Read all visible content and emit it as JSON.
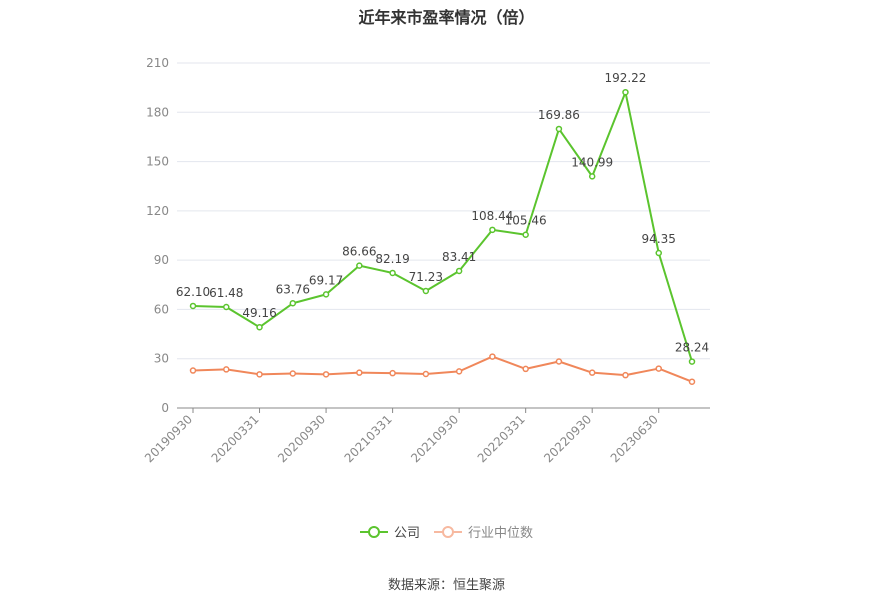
{
  "chart_data": {
    "type": "line",
    "title": "近年来市盈率情况（倍）",
    "y_ticks": [
      "0",
      "30",
      "60",
      "90",
      "120",
      "150",
      "180",
      "210"
    ],
    "ylim": [
      0,
      210
    ],
    "x_tick_labels": [
      "20190930",
      "20200331",
      "20200930",
      "20210331",
      "20210930",
      "20220331",
      "20220930",
      "20230630"
    ],
    "x_tick_at_index": [
      0,
      2,
      4,
      6,
      8,
      10,
      12,
      14
    ],
    "point_count": 16,
    "series": [
      {
        "name": "公司",
        "color": "#5bc42e",
        "values": [
          62.1,
          61.48,
          49.16,
          63.76,
          69.17,
          86.66,
          82.19,
          71.23,
          83.41,
          108.44,
          105.46,
          169.86,
          140.99,
          192.22,
          94.35,
          28.24
        ],
        "labels": [
          "62.10",
          "61.48",
          "49.16",
          "63.76",
          "69.17",
          "86.66",
          "82.19",
          "71.23",
          "83.41",
          "108.44",
          "105.46",
          "169.86",
          "140.99",
          "192.22",
          "94.35",
          "28.24"
        ]
      },
      {
        "name": "行业中位数",
        "color": "#f0875a",
        "values": [
          22.8,
          23.5,
          20.5,
          21.0,
          20.5,
          21.5,
          21.2,
          20.7,
          22.3,
          31.3,
          23.8,
          28.3,
          21.5,
          20.0,
          24.0,
          16.0
        ]
      }
    ],
    "grid": true,
    "legend_position": "bottom"
  },
  "legend": {
    "company_label": "公司",
    "industry_label": "行业中位数"
  },
  "source": "数据来源：恒生聚源"
}
